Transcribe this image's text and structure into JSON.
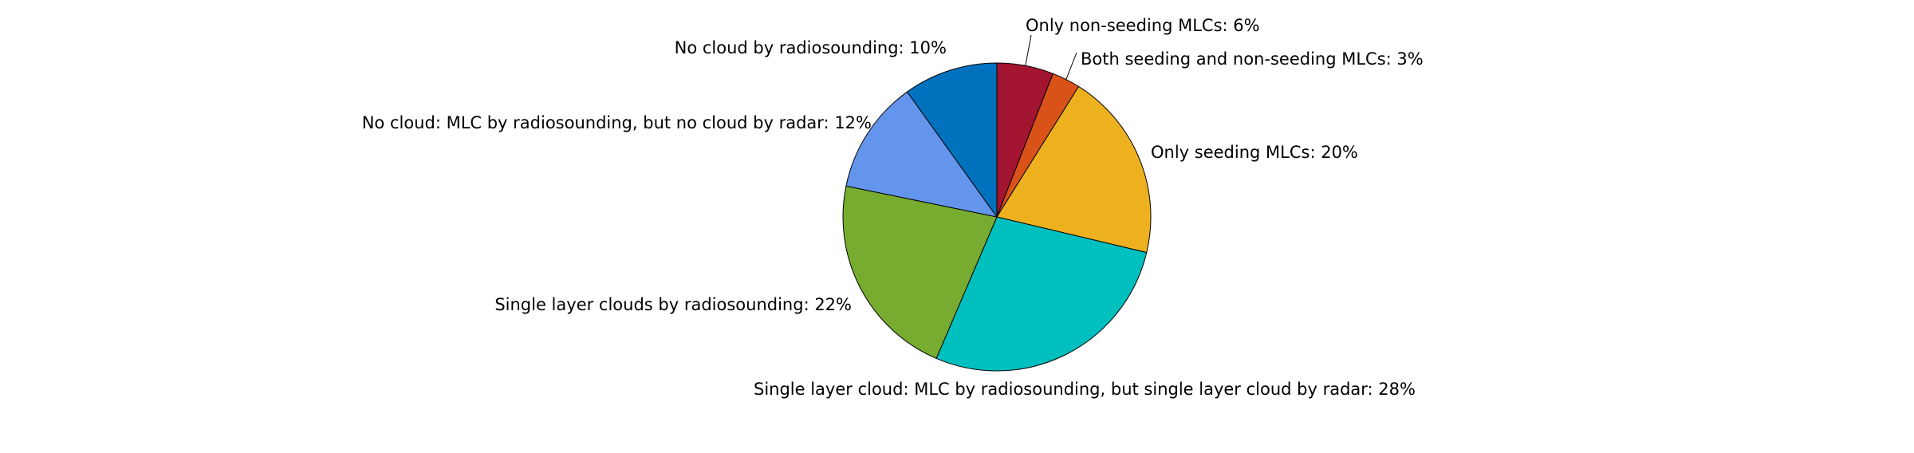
{
  "chart_data": {
    "type": "pie",
    "title": "",
    "slices": [
      {
        "label": "Only non-seeding MLCs: 6%",
        "value": 6,
        "color": "#A2142F"
      },
      {
        "label": "Both seeding and non-seeding MLCs: 3%",
        "value": 3,
        "color": "#D95319"
      },
      {
        "label": "Only seeding MLCs: 20%",
        "value": 20,
        "color": "#EDB120"
      },
      {
        "label": "Single layer cloud: MLC by radiosounding, but single layer cloud by radar: 28%",
        "value": 28,
        "color": "#00BFBF"
      },
      {
        "label": "Single layer clouds by radiosounding: 22%",
        "value": 22,
        "color": "#77AC30"
      },
      {
        "label": "No cloud: MLC by radiosounding, but no cloud by radar: 12%",
        "value": 12,
        "color": "#6495ED"
      },
      {
        "label": "No cloud by radiosounding: 10%",
        "value": 10,
        "color": "#0072BD"
      }
    ]
  }
}
